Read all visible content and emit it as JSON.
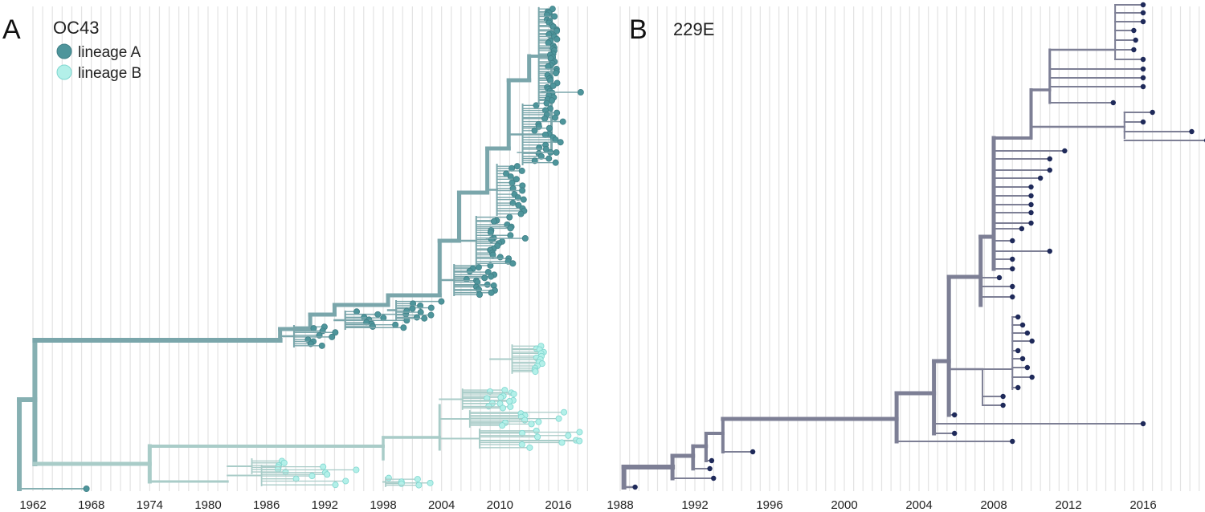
{
  "chart_data": [
    {
      "type": "phylogenetic-tree",
      "panel": "A",
      "title": "OC43",
      "xlabel": "",
      "ylabel": "",
      "xlim": [
        1960,
        2020
      ],
      "x_ticks": [
        "1962",
        "1968",
        "1974",
        "1980",
        "1986",
        "1992",
        "1998",
        "2004",
        "2010",
        "2016"
      ],
      "legend": [
        {
          "label": "lineage A",
          "color": "#4e959b",
          "stroke": "#3f7f86"
        },
        {
          "label": "lineage B",
          "color": "#b3f0e9",
          "stroke": "#7fd6cf"
        }
      ],
      "branch_colors": {
        "lineage_A": "#7aa6ab",
        "lineage_B": "#a9ccc8",
        "root": "#86b0b2"
      },
      "root_year": 1960.6,
      "outgroup_tip_year": 1967.5,
      "lineage_A": {
        "mrca_year": 1962.2,
        "key_nodes_year": [
          1987.4,
          1990.5,
          1993.0,
          1998.5,
          2003.8,
          2005.8,
          2008.7,
          2010.9,
          2013.0
        ],
        "tip_year_range": [
          1990.0,
          2018.3
        ],
        "outlier_tips_year": [
          2012.6,
          2015.8,
          2018.3
        ]
      },
      "lineage_B": {
        "mrca_year": 1974.0,
        "key_nodes_year": [
          1982.0,
          1983.0,
          1998.0,
          2003.8,
          2009.0,
          2013.5
        ],
        "tip_year_range": [
          1987.5,
          2018.2
        ]
      }
    },
    {
      "type": "phylogenetic-tree",
      "panel": "B",
      "title": "229E",
      "xlabel": "",
      "ylabel": "",
      "xlim": [
        1987.5,
        2019.5
      ],
      "x_ticks": [
        "1988",
        "1992",
        "1996",
        "2000",
        "2004",
        "2008",
        "2012",
        "2016"
      ],
      "branch_color": "#7d7f95",
      "tip_color": "#1f2a5a",
      "root_year": 1988.2,
      "key_nodes_year": [
        1990.8,
        1991.9,
        1992.6,
        1993.5,
        2002.8,
        2004.8,
        2005.6,
        2007.3,
        2008.0,
        2009.0,
        2010.0,
        2015.0
      ],
      "tip_years": [
        1988.8,
        1992.8,
        1993.0,
        1995.1,
        2005.6,
        2005.9,
        2008.0,
        2008.5,
        2008.9,
        2009.0,
        2010.0,
        2011.0,
        2011.8,
        2014.4,
        2016.0,
        2016.5,
        2018.6,
        2019.4
      ]
    }
  ]
}
